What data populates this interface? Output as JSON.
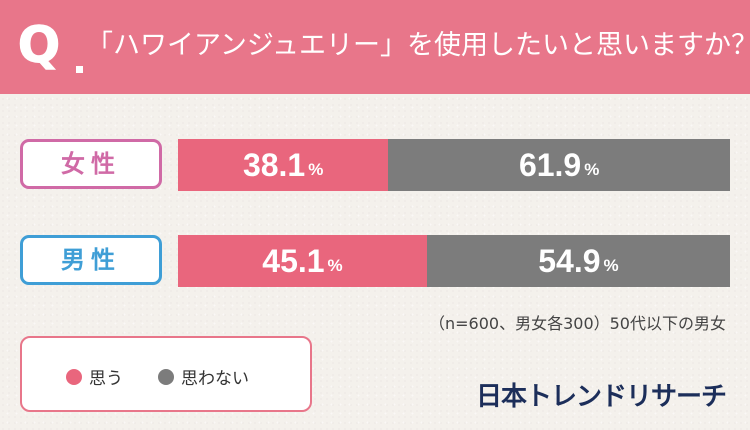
{
  "header": {
    "q_mark": "Q",
    "question": "「ハワイアンジュエリー」を使用したいと思いますか？"
  },
  "colors": {
    "yes": "#e9667d",
    "no": "#7c7c7c",
    "header": "#e8768a",
    "female": "#d06aa6",
    "male": "#3f9ed6"
  },
  "chart_data": {
    "type": "bar",
    "orientation": "horizontal",
    "stacked": true,
    "categories": [
      "女性",
      "男性"
    ],
    "series": [
      {
        "name": "思う",
        "values": [
          38.1,
          45.1
        ],
        "labels": [
          "38.1",
          "45.1"
        ]
      },
      {
        "name": "思わない",
        "values": [
          61.9,
          54.9
        ],
        "labels": [
          "61.9",
          "54.9"
        ]
      }
    ],
    "unit": "%",
    "xlim": [
      0,
      100
    ]
  },
  "note": "（n=600、男女各300）50代以下の男女",
  "legend": {
    "items": [
      {
        "label": "思う"
      },
      {
        "label": "思わない"
      }
    ]
  },
  "brand": "日本トレンドリサーチ"
}
